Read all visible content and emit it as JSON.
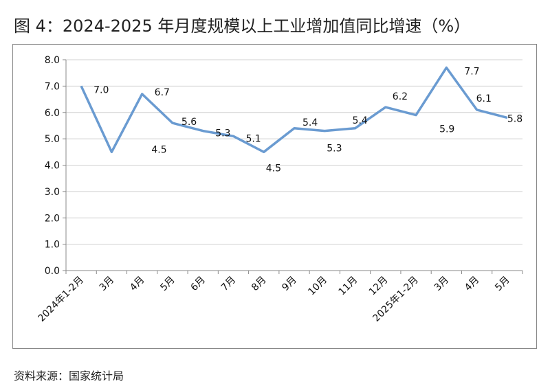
{
  "chart_data": {
    "type": "line",
    "title": "图 4：2024-2025 年月度规模以上工业增加值同比增速（%）",
    "categories": [
      "2024年1-2月",
      "3月",
      "4月",
      "5月",
      "6月",
      "7月",
      "8月",
      "9月",
      "10月",
      "11月",
      "12月",
      "2025年1-2月",
      "3月",
      "4月",
      "5月"
    ],
    "series": [
      {
        "values": [
          7.0,
          4.5,
          6.7,
          5.6,
          5.3,
          5.1,
          4.5,
          5.4,
          5.3,
          5.4,
          6.2,
          5.9,
          7.7,
          6.1,
          5.8
        ]
      }
    ],
    "ylim": [
      0,
      8
    ],
    "yticks": [
      "0.0",
      "1.0",
      "2.0",
      "3.0",
      "4.0",
      "5.0",
      "6.0",
      "7.0",
      "8.0"
    ],
    "grid": true,
    "legend": "none",
    "line_color": "#6a9bd1"
  },
  "source": "资料来源：国家统计局"
}
